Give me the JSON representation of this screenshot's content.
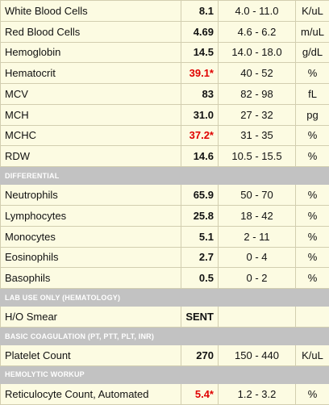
{
  "rows": [
    {
      "kind": "result",
      "name": "White Blood Cells",
      "value": "8.1",
      "range": "4.0 - 11.0",
      "unit": "K/uL",
      "flag": false
    },
    {
      "kind": "result",
      "name": "Red Blood Cells",
      "value": "4.69",
      "range": "4.6 - 6.2",
      "unit": "m/uL",
      "flag": false
    },
    {
      "kind": "result",
      "name": "Hemoglobin",
      "value": "14.5",
      "range": "14.0 - 18.0",
      "unit": "g/dL",
      "flag": false
    },
    {
      "kind": "result",
      "name": "Hematocrit",
      "value": "39.1*",
      "range": "40 - 52",
      "unit": "%",
      "flag": true
    },
    {
      "kind": "result",
      "name": "MCV",
      "value": "83",
      "range": "82 - 98",
      "unit": "fL",
      "flag": false
    },
    {
      "kind": "result",
      "name": "MCH",
      "value": "31.0",
      "range": "27 - 32",
      "unit": "pg",
      "flag": false
    },
    {
      "kind": "result",
      "name": "MCHC",
      "value": "37.2*",
      "range": "31 - 35",
      "unit": "%",
      "flag": true
    },
    {
      "kind": "result",
      "name": "RDW",
      "value": "14.6",
      "range": "10.5 - 15.5",
      "unit": "%",
      "flag": false
    },
    {
      "kind": "section",
      "title": "DIFFERENTIAL"
    },
    {
      "kind": "result",
      "name": "Neutrophils",
      "value": "65.9",
      "range": "50 - 70",
      "unit": "%",
      "flag": false
    },
    {
      "kind": "result",
      "name": "Lymphocytes",
      "value": "25.8",
      "range": "18 - 42",
      "unit": "%",
      "flag": false
    },
    {
      "kind": "result",
      "name": "Monocytes",
      "value": "5.1",
      "range": "2 - 11",
      "unit": "%",
      "flag": false
    },
    {
      "kind": "result",
      "name": "Eosinophils",
      "value": "2.7",
      "range": "0 - 4",
      "unit": "%",
      "flag": false
    },
    {
      "kind": "result",
      "name": "Basophils",
      "value": "0.5",
      "range": "0 - 2",
      "unit": "%",
      "flag": false
    },
    {
      "kind": "section",
      "title": "LAB USE ONLY (HEMATOLOGY)"
    },
    {
      "kind": "result",
      "name": "H/O Smear",
      "value": "SENT",
      "range": "",
      "unit": "",
      "flag": false
    },
    {
      "kind": "section",
      "title": "BASIC COAGULATION (PT, PTT, PLT, INR)"
    },
    {
      "kind": "result",
      "name": "Platelet Count",
      "value": "270",
      "range": "150 - 440",
      "unit": "K/uL",
      "flag": false
    },
    {
      "kind": "section",
      "title": "HEMOLYTIC WORKUP"
    },
    {
      "kind": "result",
      "name": "Reticulocyte Count, Automated",
      "value": "5.4*",
      "range": "1.2 - 3.2",
      "unit": "%",
      "flag": true
    }
  ]
}
